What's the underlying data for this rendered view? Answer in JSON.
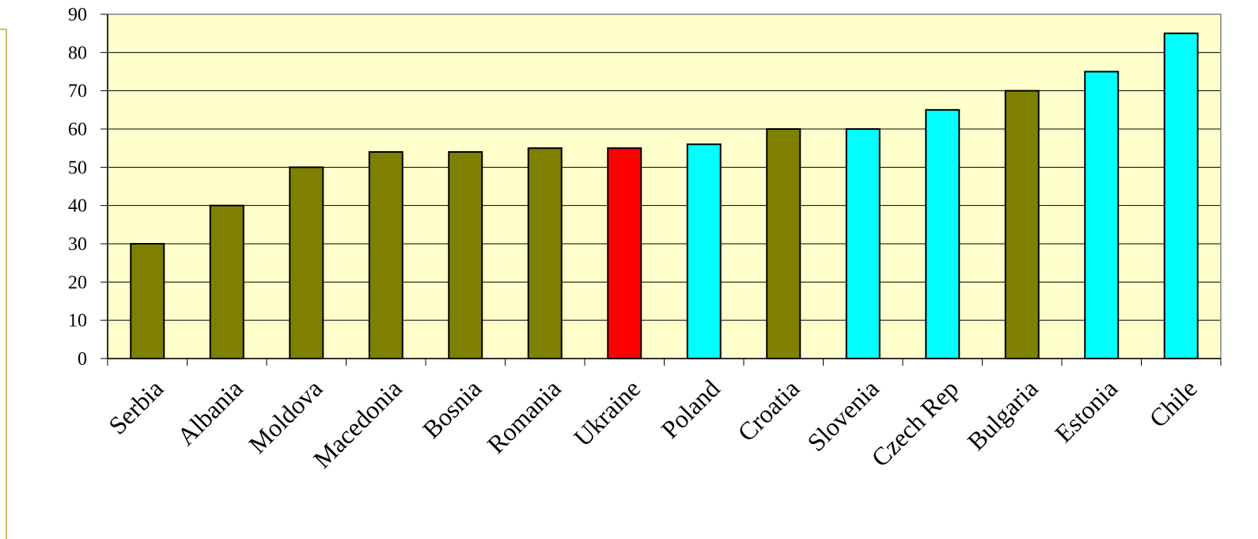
{
  "chart_data": {
    "type": "bar",
    "title": "",
    "xlabel": "",
    "ylabel": "",
    "categories": [
      "Serbia",
      "Albania",
      "Moldova",
      "Macedonia",
      "Bosnia",
      "Romania",
      "Ukraine",
      "Poland",
      "Croatia",
      "Slovenia",
      "Czech Rep",
      "Bulgaria",
      "Estonia",
      "Chile"
    ],
    "values": [
      30,
      40,
      50,
      54,
      54,
      55,
      55,
      56,
      60,
      60,
      65,
      70,
      75,
      85
    ],
    "bar_colors": [
      "#808000",
      "#808000",
      "#808000",
      "#808000",
      "#808000",
      "#808000",
      "#ff0000",
      "#00ffff",
      "#808000",
      "#00ffff",
      "#00ffff",
      "#808000",
      "#00ffff",
      "#00ffff"
    ],
    "ylim": [
      0,
      90
    ],
    "yticks": [
      0,
      10,
      20,
      30,
      40,
      50,
      60,
      70,
      80,
      90
    ],
    "grid": true,
    "plot_background": "#ffffcc",
    "legend": "none"
  }
}
